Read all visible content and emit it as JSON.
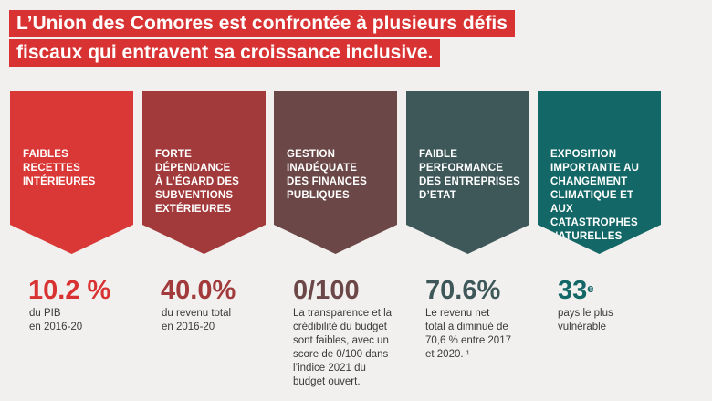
{
  "title": {
    "line1": "L’Union des Comores est confrontée à plusieurs défis",
    "line2": "fiscaux qui entravent sa croissance inclusive."
  },
  "colors": {
    "title_bg": "#d93232",
    "page_bg": "#f1f0ef"
  },
  "cards": [
    {
      "label": "FAIBLES\nRECETTES\nINTÉRIEURES",
      "color": "#da3836",
      "stat": "10.2 %",
      "stat_color": "#d93232",
      "desc": "du PIB\nen 2016-20"
    },
    {
      "label": "FORTE\nDÉPENDANCE\nÀ L’ÉGARD DES\nSUBVENTIONS\nEXTÉRIEURES",
      "color": "#a23a3b",
      "stat": "40.0%",
      "stat_color": "#a23a3b",
      "desc": "du revenu total\nen 2016-20"
    },
    {
      "label": "GESTION\nINADÉQUATE\nDES FINANCES\nPUBLIQUES",
      "color": "#6b4747",
      "stat": "0/100",
      "stat_color": "#6b4747",
      "desc": "La transparence et la\ncrédibilité du budget\nsont faibles, avec un\nscore de 0/100 dans\nl’indice 2021 du\nbudget ouvert."
    },
    {
      "label": "FAIBLE\nPERFORMANCE\nDES ENTREPRISES\nD’ETAT",
      "color": "#3e5759",
      "stat": "70.6%",
      "stat_color": "#3e5759",
      "desc": "Le revenu net\ntotal a diminué de\n70,6 % entre 2017\net 2020. ¹"
    },
    {
      "label": "EXPOSITION\nIMPORTANTE AU\nCHANGEMENT\nCLIMATIQUE ET AUX\nCATASTROPHES\nNATURELLES",
      "color": "#146767",
      "stat": "33",
      "stat_sup": "e",
      "stat_color": "#146767",
      "desc": "pays le plus\nvulnérable"
    }
  ]
}
